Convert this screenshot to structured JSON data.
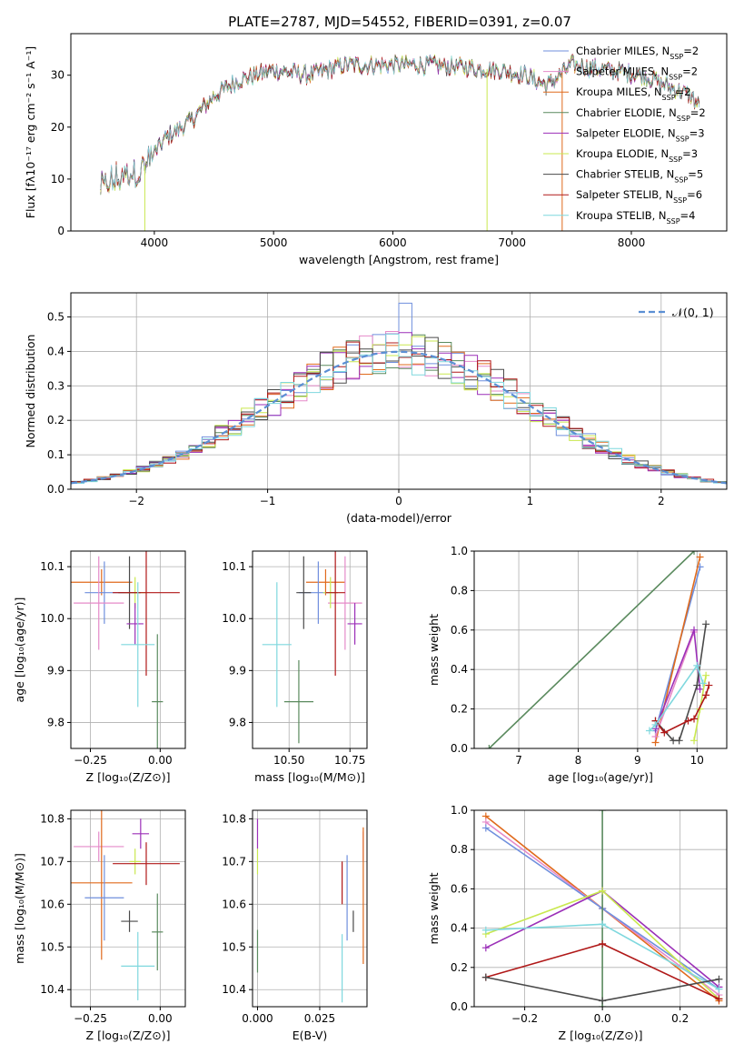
{
  "figure": {
    "title": "PLATE=2787, MJD=54552, FIBERID=0391, z=0.07"
  },
  "colors": {
    "chabrier_miles": "#6f8fdd",
    "salpeter_miles": "#e58ac9",
    "kroupa_miles": "#e06a1c",
    "chabrier_elodie": "#5a8a5e",
    "salpeter_elodie": "#9b2fb8",
    "kroupa_elodie": "#c9e84f",
    "chabrier_stelib": "#4a4a4a",
    "salpeter_stelib": "#b01818",
    "kroupa_stelib": "#7fd8de",
    "gauss": "#5b8fd4",
    "grid": "#b0b0b0"
  },
  "chart_data": [
    {
      "id": "spectrum",
      "type": "line",
      "xlabel": "wavelength [Angstrom, rest frame]",
      "ylabel": "Flux [fλ10⁻¹⁷ erg cm⁻² s⁻¹ A⁻¹]",
      "xlim": [
        3300,
        8800
      ],
      "ylim": [
        0,
        38
      ],
      "xticks": [
        4000,
        5000,
        6000,
        7000,
        8000
      ],
      "yticks": [
        0,
        10,
        20,
        30
      ],
      "grid": false,
      "legend_position": "right",
      "continuum": {
        "x": [
          3550,
          3700,
          3900,
          4000,
          4100,
          4300,
          4500,
          4700,
          5000,
          5300,
          5600,
          6000,
          6300,
          6600,
          6900,
          7100,
          7300,
          7500,
          7800,
          8100,
          8300,
          8500,
          8570
        ],
        "y": [
          8,
          10,
          12,
          15,
          18,
          21,
          26,
          29,
          31,
          30,
          32,
          32,
          32,
          31.5,
          31,
          30,
          28,
          32,
          31,
          30,
          28,
          26,
          24
        ]
      },
      "series": [
        {
          "name": "Chabrier MILES, N_SSP=2",
          "color_key": "chabrier_miles"
        },
        {
          "name": "Salpeter MILES, N_SSP=2",
          "color_key": "salpeter_miles"
        },
        {
          "name": "Kroupa MILES, N_SSP=2",
          "color_key": "kroupa_miles"
        },
        {
          "name": "Chabrier ELODIE, N_SSP=2",
          "color_key": "chabrier_elodie"
        },
        {
          "name": "Salpeter ELODIE, N_SSP=3",
          "color_key": "salpeter_elodie"
        },
        {
          "name": "Kroupa ELODIE, N_SSP=3",
          "color_key": "kroupa_elodie"
        },
        {
          "name": "Chabrier STELIB, N_SSP=5",
          "color_key": "chabrier_stelib"
        },
        {
          "name": "Salpeter STELIB, N_SSP=6",
          "color_key": "salpeter_stelib"
        },
        {
          "name": "Kroupa STELIB, N_SSP=4",
          "color_key": "kroupa_stelib"
        }
      ]
    },
    {
      "id": "residuals",
      "type": "line",
      "xlabel": "(data-model)/error",
      "ylabel": "Normed distribution",
      "xlim": [
        -2.5,
        2.5
      ],
      "ylim": [
        0,
        0.57
      ],
      "xticks": [
        -2,
        -1,
        0,
        1,
        2
      ],
      "xtick_labels": [
        "−2",
        "−1",
        "0",
        "1",
        "2"
      ],
      "yticks": [
        0.0,
        0.1,
        0.2,
        0.3,
        0.4,
        0.5
      ],
      "ytick_labels": [
        "0.0",
        "0.1",
        "0.2",
        "0.3",
        "0.4",
        "0.5"
      ],
      "grid": true,
      "legend_position": "top-right",
      "gauss_label": "𝒩(0, 1)",
      "bin_width": 0.1,
      "peak_bin_value": 0.54
    },
    {
      "id": "age_vs_z",
      "type": "scatter",
      "xlabel": "Z [log₁₀(Z/Z⊙)]",
      "ylabel": "age  [log₁₀(age/yr)]",
      "xlim": [
        -0.32,
        0.09
      ],
      "ylim": [
        9.75,
        10.13
      ],
      "xticks": [
        -0.25,
        0.0
      ],
      "xtick_labels": [
        "−0.25",
        "0.00"
      ],
      "yticks": [
        9.8,
        9.9,
        10.0,
        10.1
      ],
      "ytick_labels": [
        "9.8",
        "9.9",
        "10.0",
        "10.1"
      ],
      "grid": true,
      "points": [
        {
          "c": "kroupa_miles",
          "x": -0.21,
          "y": 10.07,
          "xe": 0.11,
          "ye": 0.025
        },
        {
          "c": "chabrier_miles",
          "x": -0.2,
          "y": 10.05,
          "xe": 0.07,
          "ye": 0.06
        },
        {
          "c": "salpeter_miles",
          "x": -0.22,
          "y": 10.03,
          "xe": 0.09,
          "ye": 0.09
        },
        {
          "c": "kroupa_elodie",
          "x": -0.09,
          "y": 10.05,
          "xe": 0.04,
          "ye": 0.03
        },
        {
          "c": "chabrier_stelib",
          "x": -0.11,
          "y": 10.05,
          "xe": 0.04,
          "ye": 0.07
        },
        {
          "c": "salpeter_stelib",
          "x": -0.05,
          "y": 10.05,
          "xe": 0.12,
          "ye": 0.16
        },
        {
          "c": "salpeter_elodie",
          "x": -0.09,
          "y": 9.99,
          "xe": 0.03,
          "ye": 0.04
        },
        {
          "c": "kroupa_stelib",
          "x": -0.08,
          "y": 9.95,
          "xe": 0.06,
          "ye": 0.12
        },
        {
          "c": "chabrier_elodie",
          "x": -0.01,
          "y": 9.84,
          "xe": 0.02,
          "ye": 0.13
        }
      ]
    },
    {
      "id": "age_vs_mass",
      "type": "scatter",
      "xlabel": "mass [log₁₀(M/M⊙)]",
      "ylabel": "",
      "xlim": [
        10.35,
        10.82
      ],
      "ylim": [
        9.75,
        10.13
      ],
      "xticks": [
        10.5,
        10.75
      ],
      "xtick_labels": [
        "10.50",
        "10.75"
      ],
      "yticks": [
        9.8,
        9.9,
        10.0,
        10.1
      ],
      "ytick_labels": [
        "9.8",
        "9.9",
        "10.0",
        "10.1"
      ],
      "grid": true,
      "points": [
        {
          "c": "kroupa_miles",
          "x": 10.65,
          "y": 10.07,
          "xe": 0.08,
          "ye": 0.025
        },
        {
          "c": "chabrier_miles",
          "x": 10.62,
          "y": 10.05,
          "xe": 0.08,
          "ye": 0.06
        },
        {
          "c": "salpeter_miles",
          "x": 10.73,
          "y": 10.03,
          "xe": 0.07,
          "ye": 0.09
        },
        {
          "c": "kroupa_elodie",
          "x": 10.67,
          "y": 10.05,
          "xe": 0.03,
          "ye": 0.03
        },
        {
          "c": "chabrier_stelib",
          "x": 10.56,
          "y": 10.05,
          "xe": 0.03,
          "ye": 0.07
        },
        {
          "c": "salpeter_stelib",
          "x": 10.69,
          "y": 10.05,
          "xe": 0.04,
          "ye": 0.16
        },
        {
          "c": "salpeter_elodie",
          "x": 10.77,
          "y": 9.99,
          "xe": 0.03,
          "ye": 0.04
        },
        {
          "c": "kroupa_stelib",
          "x": 10.45,
          "y": 9.95,
          "xe": 0.06,
          "ye": 0.12
        },
        {
          "c": "chabrier_elodie",
          "x": 10.54,
          "y": 9.84,
          "xe": 0.06,
          "ye": 0.08
        }
      ]
    },
    {
      "id": "weight_vs_age",
      "type": "line",
      "xlabel": "age  [log₁₀(age/yr)]",
      "ylabel": "mass weight",
      "xlim": [
        6.25,
        10.5
      ],
      "ylim": [
        0,
        1.0
      ],
      "xticks": [
        7,
        8,
        9,
        10
      ],
      "yticks": [
        0,
        0.2,
        0.4,
        0.6,
        0.8,
        1.0
      ],
      "ytick_labels": [
        "0.0",
        "0.2",
        "0.4",
        "0.6",
        "0.8",
        "1.0"
      ],
      "grid": true,
      "series": [
        {
          "c": "chabrier_elodie",
          "x": [
            6.5,
            9.95
          ],
          "y": [
            0.0,
            1.0
          ]
        },
        {
          "c": "chabrier_miles",
          "x": [
            9.3,
            10.05
          ],
          "y": [
            0.09,
            0.92
          ]
        },
        {
          "c": "kroupa_miles",
          "x": [
            9.3,
            10.05
          ],
          "y": [
            0.03,
            0.97
          ]
        },
        {
          "c": "salpeter_miles",
          "x": [
            9.3,
            9.95
          ],
          "y": [
            0.06,
            0.59
          ]
        },
        {
          "c": "salpeter_elodie",
          "x": [
            9.3,
            9.95,
            10.05
          ],
          "y": [
            0.1,
            0.6,
            0.3
          ]
        },
        {
          "c": "kroupa_elodie",
          "x": [
            9.95,
            10.05,
            10.15
          ],
          "y": [
            0.04,
            0.2,
            0.37
          ]
        },
        {
          "c": "chabrier_stelib",
          "x": [
            9.3,
            9.6,
            9.7,
            10.0,
            10.15
          ],
          "y": [
            0.14,
            0.04,
            0.04,
            0.32,
            0.63
          ]
        },
        {
          "c": "salpeter_stelib",
          "x": [
            9.3,
            9.45,
            9.85,
            9.95,
            10.15,
            10.2
          ],
          "y": [
            0.14,
            0.08,
            0.14,
            0.15,
            0.27,
            0.32
          ]
        },
        {
          "c": "kroupa_stelib",
          "x": [
            9.2,
            9.3,
            10.0,
            10.1
          ],
          "y": [
            0.09,
            0.12,
            0.42,
            0.33
          ]
        }
      ]
    },
    {
      "id": "mass_vs_z",
      "type": "scatter",
      "xlabel": "Z [log₁₀(Z/Z⊙)]",
      "ylabel": "mass [log₁₀(M/M⊙)]",
      "xlim": [
        -0.32,
        0.09
      ],
      "ylim": [
        10.36,
        10.82
      ],
      "xticks": [
        -0.25,
        0.0
      ],
      "xtick_labels": [
        "−0.25",
        "0.00"
      ],
      "yticks": [
        10.4,
        10.5,
        10.6,
        10.7,
        10.8
      ],
      "ytick_labels": [
        "10.4",
        "10.5",
        "10.6",
        "10.7",
        "10.8"
      ],
      "grid": true,
      "points": [
        {
          "c": "salpeter_elodie",
          "x": -0.07,
          "y": 10.765,
          "xe": 0.03,
          "ye": 0.035
        },
        {
          "c": "salpeter_miles",
          "x": -0.22,
          "y": 10.735,
          "xe": 0.09,
          "ye": 0.035
        },
        {
          "c": "kroupa_elodie",
          "x": -0.09,
          "y": 10.7,
          "xe": 0.02,
          "ye": 0.03
        },
        {
          "c": "salpeter_stelib",
          "x": -0.05,
          "y": 10.695,
          "xe": 0.12,
          "ye": 0.05
        },
        {
          "c": "kroupa_miles",
          "x": -0.21,
          "y": 10.65,
          "xe": 0.11,
          "ye": 0.18
        },
        {
          "c": "chabrier_miles",
          "x": -0.2,
          "y": 10.615,
          "xe": 0.07,
          "ye": 0.1
        },
        {
          "c": "chabrier_stelib",
          "x": -0.11,
          "y": 10.56,
          "xe": 0.03,
          "ye": 0.025
        },
        {
          "c": "chabrier_elodie",
          "x": -0.01,
          "y": 10.535,
          "xe": 0.02,
          "ye": 0.09
        },
        {
          "c": "kroupa_stelib",
          "x": -0.08,
          "y": 10.455,
          "xe": 0.06,
          "ye": 0.08
        }
      ]
    },
    {
      "id": "mass_vs_ebv",
      "type": "scatter",
      "xlabel": "E(B-V)",
      "ylabel": "",
      "xlim": [
        -0.002,
        0.044
      ],
      "ylim": [
        10.36,
        10.82
      ],
      "xticks": [
        0.0,
        0.025
      ],
      "xtick_labels": [
        "0.000",
        "0.025"
      ],
      "yticks": [
        10.4,
        10.5,
        10.6,
        10.7,
        10.8
      ],
      "ytick_labels": [
        "10.4",
        "10.5",
        "10.6",
        "10.7",
        "10.8"
      ],
      "grid": true,
      "points": [
        {
          "c": "salpeter_elodie",
          "x": 0.0,
          "y": 10.765,
          "xe": 0,
          "ye": 0.035
        },
        {
          "c": "salpeter_miles",
          "x": 0.0425,
          "y": 10.735,
          "xe": 0,
          "ye": 0.035
        },
        {
          "c": "kroupa_elodie",
          "x": 0.0,
          "y": 10.7,
          "xe": 0,
          "ye": 0.03
        },
        {
          "c": "salpeter_stelib",
          "x": 0.034,
          "y": 10.65,
          "xe": 0,
          "ye": 0.05
        },
        {
          "c": "kroupa_miles",
          "x": 0.0425,
          "y": 10.62,
          "xe": 0,
          "ye": 0.16
        },
        {
          "c": "chabrier_miles",
          "x": 0.036,
          "y": 10.615,
          "xe": 0,
          "ye": 0.1
        },
        {
          "c": "chabrier_stelib",
          "x": 0.0385,
          "y": 10.56,
          "xe": 0,
          "ye": 0.025
        },
        {
          "c": "chabrier_elodie",
          "x": 0.0,
          "y": 10.49,
          "xe": 0,
          "ye": 0.05
        },
        {
          "c": "kroupa_stelib",
          "x": 0.034,
          "y": 10.45,
          "xe": 0,
          "ye": 0.08
        }
      ]
    },
    {
      "id": "weight_vs_z",
      "type": "line",
      "xlabel": "Z [log₁₀(Z/Z⊙)]",
      "ylabel": "mass weight",
      "xlim": [
        -0.33,
        0.32
      ],
      "ylim": [
        0,
        1.0
      ],
      "xticks": [
        -0.2,
        0.0,
        0.2
      ],
      "xtick_labels": [
        "−0.2",
        "0.0",
        "0.2"
      ],
      "yticks": [
        0,
        0.2,
        0.4,
        0.6,
        0.8,
        1.0
      ],
      "ytick_labels": [
        "0.0",
        "0.2",
        "0.4",
        "0.6",
        "0.8",
        "1.0"
      ],
      "grid": true,
      "series": [
        {
          "c": "kroupa_miles",
          "x": [
            -0.3,
            0.0,
            0.3
          ],
          "y": [
            0.97,
            0.5,
            0.03
          ]
        },
        {
          "c": "salpeter_miles",
          "x": [
            -0.3,
            0.0,
            0.3
          ],
          "y": [
            0.94,
            0.5,
            0.06
          ]
        },
        {
          "c": "chabrier_miles",
          "x": [
            -0.3,
            0.0,
            0.3
          ],
          "y": [
            0.91,
            0.5,
            0.09
          ]
        },
        {
          "c": "chabrier_elodie",
          "x": [
            0.0,
            0.0
          ],
          "y": [
            0.0,
            1.0
          ]
        },
        {
          "c": "salpeter_elodie",
          "x": [
            -0.3,
            0.0,
            0.3
          ],
          "y": [
            0.3,
            0.59,
            0.1
          ]
        },
        {
          "c": "kroupa_elodie",
          "x": [
            -0.3,
            0.0,
            0.3
          ],
          "y": [
            0.37,
            0.59,
            0.04
          ]
        },
        {
          "c": "kroupa_stelib",
          "x": [
            -0.3,
            0.0,
            0.3
          ],
          "y": [
            0.39,
            0.42,
            0.09
          ]
        },
        {
          "c": "salpeter_stelib",
          "x": [
            -0.3,
            0.0,
            0.3
          ],
          "y": [
            0.15,
            0.32,
            0.04
          ]
        },
        {
          "c": "chabrier_stelib",
          "x": [
            -0.3,
            0.0,
            0.3
          ],
          "y": [
            0.15,
            0.03,
            0.14
          ]
        }
      ]
    }
  ]
}
